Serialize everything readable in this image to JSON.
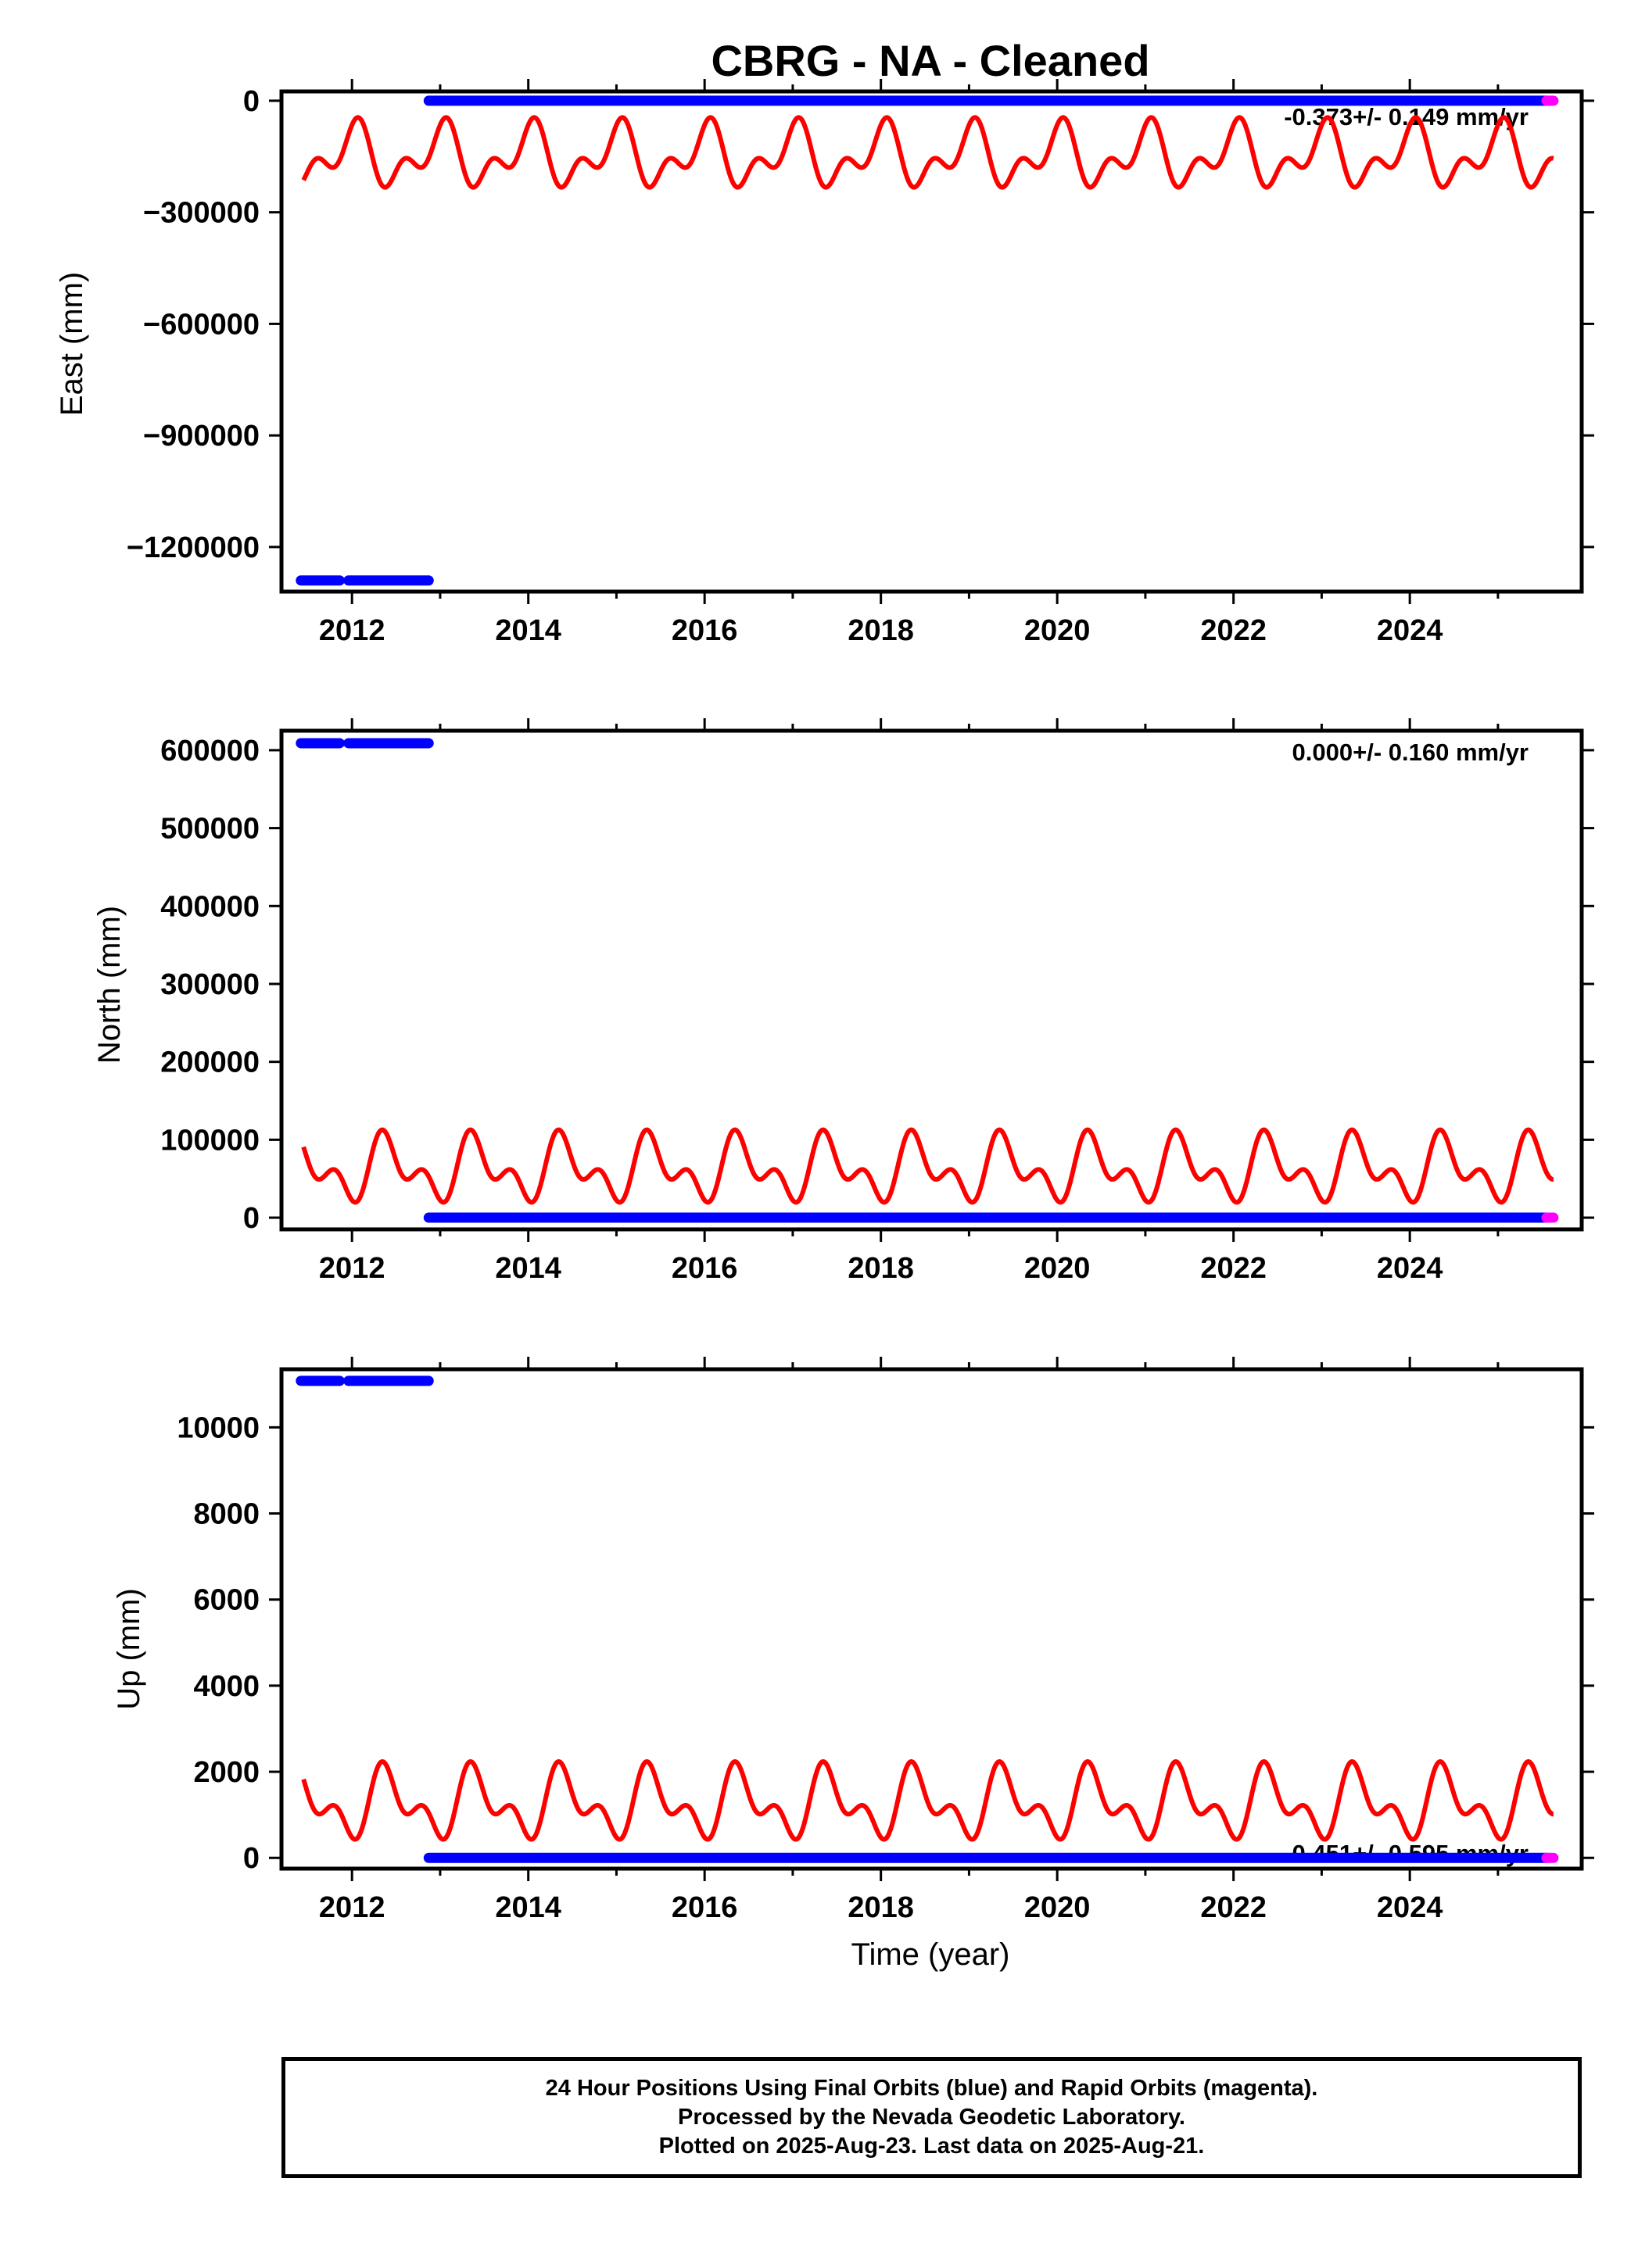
{
  "title": "CBRG  - NA - Cleaned",
  "xlabel": "Time (year)",
  "colors": {
    "final_orbits": "#0000ff",
    "rapid_orbits": "#ff00ff",
    "model": "#ff0000",
    "axis": "#000000"
  },
  "footer": {
    "line1": "24 Hour Positions Using Final Orbits (blue) and Rapid Orbits (magenta).",
    "line2": "Processed by the Nevada Geodetic Laboratory.",
    "line3": "Plotted on 2025-Aug-23. Last data on 2025-Aug-21."
  },
  "chart_data": [
    {
      "type": "scatter",
      "component": "east",
      "ylabel": "East (mm)",
      "rate_label": "-0.373+/- 0.149 mm/yr",
      "xlim": [
        2011.2,
        2025.95
      ],
      "ylim": [
        -1320000,
        25000
      ],
      "xticks": [
        2012,
        2014,
        2016,
        2018,
        2020,
        2022,
        2024
      ],
      "yticks": [
        0,
        -300000,
        -600000,
        -900000,
        -1200000
      ],
      "ytick_labels": [
        "0",
        "−300000",
        "−600000",
        "−900000",
        "−1200000"
      ],
      "final_segments": [
        {
          "x_start": 2011.42,
          "x_end": 2011.86,
          "y": -1290000
        },
        {
          "x_start": 2011.96,
          "x_end": 2012.87,
          "y": -1290000
        },
        {
          "x_start": 2012.87,
          "x_end": 2025.55,
          "y": 0
        }
      ],
      "rapid_segment": {
        "x_start": 2025.55,
        "x_end": 2025.63,
        "y": 0
      },
      "model": {
        "x_start": 2011.45,
        "x_end": 2025.63,
        "mean": -150000,
        "annual_amp": 62000,
        "annual_phase": 1.5,
        "semi_amp": 48000,
        "semi_phase": 0.5
      }
    },
    {
      "type": "scatter",
      "component": "north",
      "ylabel": "North (mm)",
      "rate_label": "0.000+/- 0.160 mm/yr",
      "xlim": [
        2011.2,
        2025.95
      ],
      "ylim": [
        -15000,
        625000
      ],
      "xticks": [
        2012,
        2014,
        2016,
        2018,
        2020,
        2022,
        2024
      ],
      "yticks": [
        600000,
        500000,
        400000,
        300000,
        200000,
        100000,
        0
      ],
      "ytick_labels": [
        "600000",
        "500000",
        "400000",
        "300000",
        "200000",
        "100000",
        "0"
      ],
      "final_segments": [
        {
          "x_start": 2011.42,
          "x_end": 2011.86,
          "y": 609000
        },
        {
          "x_start": 2011.96,
          "x_end": 2012.87,
          "y": 609000
        },
        {
          "x_start": 2012.87,
          "x_end": 2025.55,
          "y": 0
        }
      ],
      "rapid_segment": {
        "x_start": 2025.55,
        "x_end": 2025.63,
        "y": 0
      },
      "model": {
        "x_start": 2011.45,
        "x_end": 2025.63,
        "mean": 62000,
        "annual_amp": 30000,
        "annual_phase": -1.0,
        "semi_amp": 24000,
        "semi_phase": -2.5
      }
    },
    {
      "type": "scatter",
      "component": "up",
      "ylabel": "Up (mm)",
      "rate_label": "0.451+/- 0.595 mm/yr",
      "xlim": [
        2011.2,
        2025.95
      ],
      "ylim": [
        -250,
        11350
      ],
      "xticks": [
        2012,
        2014,
        2016,
        2018,
        2020,
        2022,
        2024
      ],
      "yticks": [
        10000,
        8000,
        6000,
        4000,
        2000,
        0
      ],
      "ytick_labels": [
        "10000",
        "8000",
        "6000",
        "4000",
        "2000",
        "0"
      ],
      "final_segments": [
        {
          "x_start": 2011.42,
          "x_end": 2011.86,
          "y": 11080
        },
        {
          "x_start": 2011.96,
          "x_end": 2012.87,
          "y": 11080
        },
        {
          "x_start": 2012.87,
          "x_end": 2025.55,
          "y": 0
        }
      ],
      "rapid_segment": {
        "x_start": 2025.55,
        "x_end": 2025.63,
        "y": 0
      },
      "model": {
        "x_start": 2011.45,
        "x_end": 2025.63,
        "mean": 1250,
        "annual_amp": 600,
        "annual_phase": -1.0,
        "semi_amp": 450,
        "semi_phase": -2.5
      }
    }
  ]
}
